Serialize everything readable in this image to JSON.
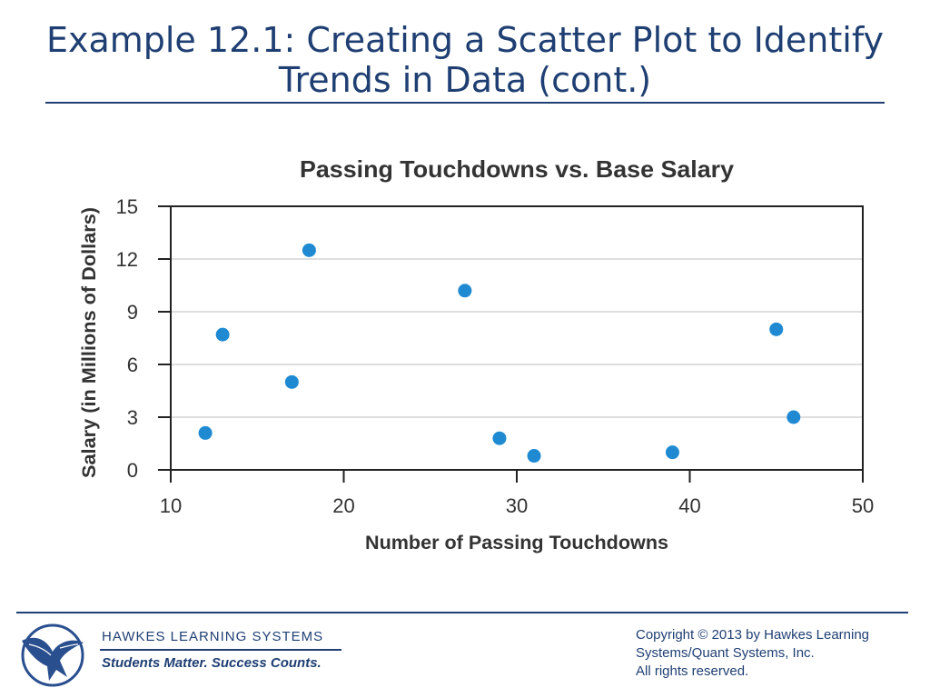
{
  "slide": {
    "title": "Example 12.1: Creating a Scatter Plot to Identify Trends in Data (cont.)"
  },
  "chart_data": {
    "type": "scatter",
    "title": "Passing Touchdowns vs. Base Salary",
    "xlabel": "Number of Passing Touchdowns",
    "ylabel": "Salary (in Millions of Dollars)",
    "xlim": [
      10,
      50
    ],
    "ylim": [
      0,
      15
    ],
    "xticks": [
      10,
      20,
      30,
      40,
      50
    ],
    "yticks": [
      0,
      3,
      6,
      9,
      12,
      15
    ],
    "grid": "horizontal",
    "legend": "none",
    "point_color": "#1f8ad2",
    "points": [
      {
        "x": 12,
        "y": 2.1
      },
      {
        "x": 13,
        "y": 7.7
      },
      {
        "x": 17,
        "y": 5.0
      },
      {
        "x": 18,
        "y": 12.5
      },
      {
        "x": 27,
        "y": 10.2
      },
      {
        "x": 29,
        "y": 1.8
      },
      {
        "x": 31,
        "y": 0.8
      },
      {
        "x": 39,
        "y": 1.0
      },
      {
        "x": 45,
        "y": 8.0
      },
      {
        "x": 46,
        "y": 3.0
      }
    ]
  },
  "footer": {
    "brand": "HAWKES  LEARNING  SYSTEMS",
    "tagline": "Students Matter. Success Counts.",
    "copyright_lines": [
      "Copyright © 2013 by Hawkes Learning",
      "Systems/Quant Systems, Inc.",
      "All rights reserved."
    ],
    "logo_icon": "eagle-logo-icon"
  }
}
